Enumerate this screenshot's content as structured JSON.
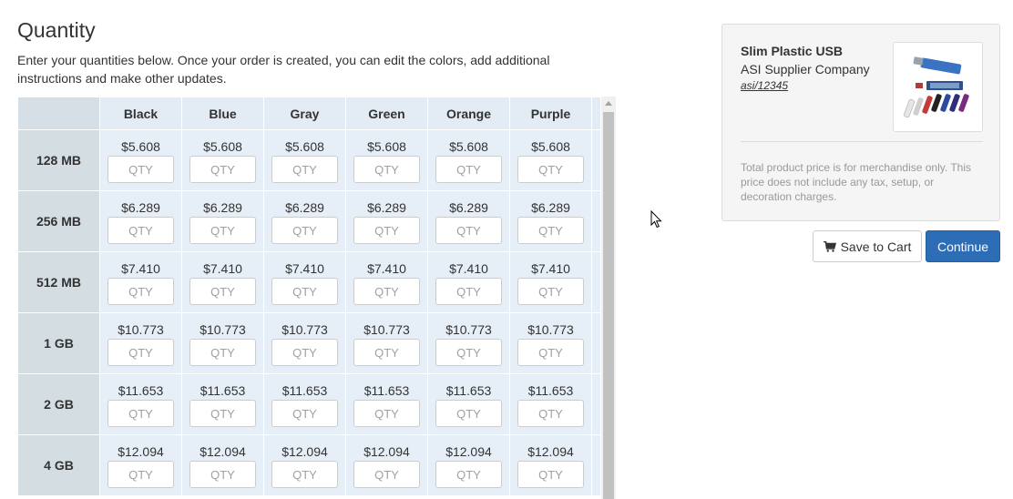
{
  "page": {
    "title": "Quantity",
    "intro": "Enter your quantities below. Once your order is created, you can edit the colors, add additional instructions and make other updates."
  },
  "grid": {
    "columns": [
      "Black",
      "Blue",
      "Gray",
      "Green",
      "Orange",
      "Purple"
    ],
    "qty_placeholder": "QTY",
    "rows": [
      {
        "label": "128 MB",
        "price": "$5.608"
      },
      {
        "label": "256 MB",
        "price": "$6.289"
      },
      {
        "label": "512 MB",
        "price": "$7.410"
      },
      {
        "label": "1 GB",
        "price": "$10.773"
      },
      {
        "label": "2 GB",
        "price": "$11.653"
      },
      {
        "label": "4 GB",
        "price": "$12.094"
      }
    ]
  },
  "product": {
    "name": "Slim Plastic USB",
    "supplier": "ASI Supplier Company",
    "asi_number": "asi/12345",
    "image_icon": "usb-drives-product-image",
    "disclaimer": "Total product price is for merchandise only. This price does not include any tax, setup, or decoration charges."
  },
  "actions": {
    "save_label": "Save to Cart",
    "save_icon": "shopping-cart-icon",
    "continue_label": "Continue"
  },
  "colors": {
    "continue_bg": "#2d6db5",
    "cell_bg": "#e6eef7",
    "row_header_bg": "#d3dde2",
    "column_header_bg": "#e3ecf5"
  }
}
